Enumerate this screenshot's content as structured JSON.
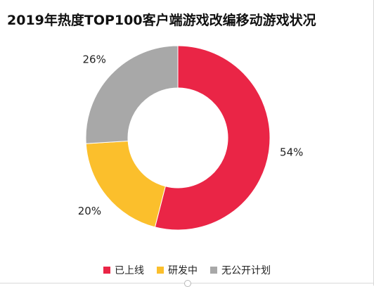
{
  "chart_data": {
    "type": "pie",
    "title": "2019年热度TOP100客户端游戏改编移动游戏状况",
    "categories": [
      "已上线",
      "研发中",
      "无公开计划"
    ],
    "values": [
      54,
      20,
      26
    ],
    "labels": [
      "54%",
      "20%",
      "26%"
    ],
    "colors": [
      "#EA2546",
      "#FBBF2C",
      "#A8A8A8"
    ],
    "legend": "bottom",
    "donut": true
  }
}
